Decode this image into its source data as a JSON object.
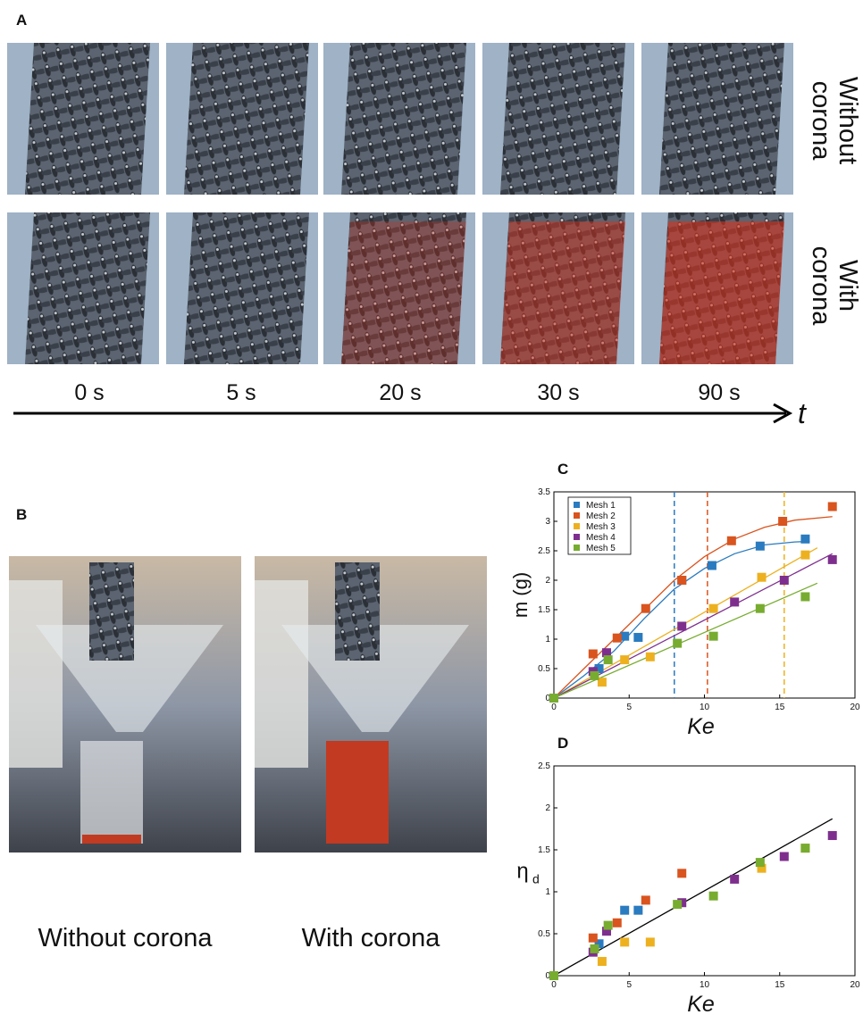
{
  "panels": {
    "a": "A",
    "b": "B"
  },
  "panel_a": {
    "row_labels": [
      [
        "Without",
        "corona"
      ],
      [
        "With",
        "corona"
      ]
    ],
    "times": [
      "0 s",
      "5 s",
      "20 s",
      "30 s",
      "90 s"
    ],
    "axis": "t"
  },
  "panel_b": {
    "captions": [
      "Without corona",
      "With corona"
    ]
  },
  "chart_data": [
    {
      "type": "scatter",
      "panel": "C",
      "xlabel": "Ke",
      "ylabel": "m (g)",
      "xlim": [
        0,
        20
      ],
      "ylim": [
        0,
        3.5
      ],
      "xticks": [
        0,
        5,
        10,
        15,
        20
      ],
      "yticks": [
        0,
        0.5,
        1,
        1.5,
        2,
        2.5,
        3,
        3.5
      ],
      "legend": "upper left",
      "series": [
        {
          "name": "Mesh 1",
          "color": "#2a7bbf",
          "x": [
            0,
            3,
            4.7,
            5.6,
            8.5,
            10.5,
            13.7,
            16.7
          ],
          "values": [
            0,
            0.5,
            1.05,
            1.03,
            2.0,
            2.25,
            2.58,
            2.7
          ]
        },
        {
          "name": "Mesh 2",
          "color": "#d9541e",
          "x": [
            0,
            2.6,
            4.2,
            6.1,
            8.5,
            11.8,
            15.2,
            18.5
          ],
          "values": [
            0,
            0.75,
            1.02,
            1.52,
            2.0,
            2.67,
            3.0,
            3.25
          ]
        },
        {
          "name": "Mesh 3",
          "color": "#edb120",
          "x": [
            0,
            3.2,
            4.7,
            6.4,
            10.6,
            13.8,
            16.7
          ],
          "values": [
            0,
            0.27,
            0.65,
            0.7,
            1.52,
            2.05,
            2.43
          ]
        },
        {
          "name": "Mesh 4",
          "color": "#7e2f8e",
          "x": [
            0,
            2.6,
            3.5,
            8.5,
            12,
            15.3,
            18.5
          ],
          "values": [
            0,
            0.45,
            0.77,
            1.22,
            1.63,
            2.0,
            2.35
          ]
        },
        {
          "name": "Mesh 5",
          "color": "#77ac30",
          "x": [
            0,
            2.7,
            3.6,
            8.2,
            10.6,
            13.7,
            16.7
          ],
          "values": [
            0,
            0.38,
            0.65,
            0.93,
            1.05,
            1.52,
            1.72
          ]
        }
      ],
      "fits": [
        {
          "color": "#2a7bbf",
          "x": [
            0,
            2,
            4,
            6,
            8,
            10,
            12,
            14,
            16,
            17
          ],
          "values": [
            0,
            0.38,
            0.8,
            1.35,
            1.85,
            2.2,
            2.45,
            2.6,
            2.65,
            2.66
          ]
        },
        {
          "color": "#d9541e",
          "x": [
            0,
            2,
            4,
            6,
            8,
            10,
            12,
            14,
            16,
            18.5
          ],
          "values": [
            0,
            0.5,
            1.0,
            1.5,
            2.0,
            2.4,
            2.7,
            2.9,
            3.02,
            3.08
          ]
        },
        {
          "color": "#edb120",
          "x": [
            0,
            17.5
          ],
          "values": [
            0,
            2.55
          ]
        },
        {
          "color": "#7e2f8e",
          "x": [
            0,
            18.5
          ],
          "values": [
            0,
            2.45
          ]
        },
        {
          "color": "#77ac30",
          "x": [
            0,
            17.5
          ],
          "values": [
            0,
            1.95
          ]
        }
      ],
      "vlines": [
        {
          "value": 8,
          "color": "#2a7bbf"
        },
        {
          "value": 10.2,
          "color": "#d9541e"
        },
        {
          "value": 15.3,
          "color": "#edb120"
        }
      ]
    },
    {
      "type": "scatter",
      "panel": "D",
      "xlabel": "Ke",
      "ylabel": {
        "text": "η",
        "sub": "d"
      },
      "xlim": [
        0,
        20
      ],
      "ylim": [
        0,
        2.5
      ],
      "xticks": [
        0,
        5,
        10,
        15,
        20
      ],
      "yticks": [
        0,
        0.5,
        1,
        1.5,
        2,
        2.5
      ],
      "series": [
        {
          "color": "#2a7bbf",
          "x": [
            3,
            4.7,
            5.6
          ],
          "values": [
            0.38,
            0.78,
            0.78
          ]
        },
        {
          "color": "#d9541e",
          "x": [
            2.6,
            4.2,
            6.1,
            8.5
          ],
          "values": [
            0.45,
            0.63,
            0.9,
            1.22
          ]
        },
        {
          "color": "#edb120",
          "x": [
            3.2,
            4.7,
            6.4,
            13.8,
            16.7
          ],
          "values": [
            0.17,
            0.4,
            0.4,
            1.28,
            1.52
          ]
        },
        {
          "color": "#7e2f8e",
          "x": [
            2.6,
            3.5,
            8.5,
            12,
            15.3,
            18.5
          ],
          "values": [
            0.28,
            0.53,
            0.87,
            1.15,
            1.42,
            1.67
          ]
        },
        {
          "color": "#77ac30",
          "x": [
            0,
            2.7,
            3.6,
            8.2,
            10.6,
            13.7,
            16.7
          ],
          "values": [
            0,
            0.32,
            0.6,
            0.85,
            0.95,
            1.35,
            1.52
          ]
        }
      ],
      "fits": [
        {
          "color": "#000000",
          "x": [
            0,
            18.5
          ],
          "values": [
            0,
            1.87
          ]
        }
      ]
    }
  ]
}
